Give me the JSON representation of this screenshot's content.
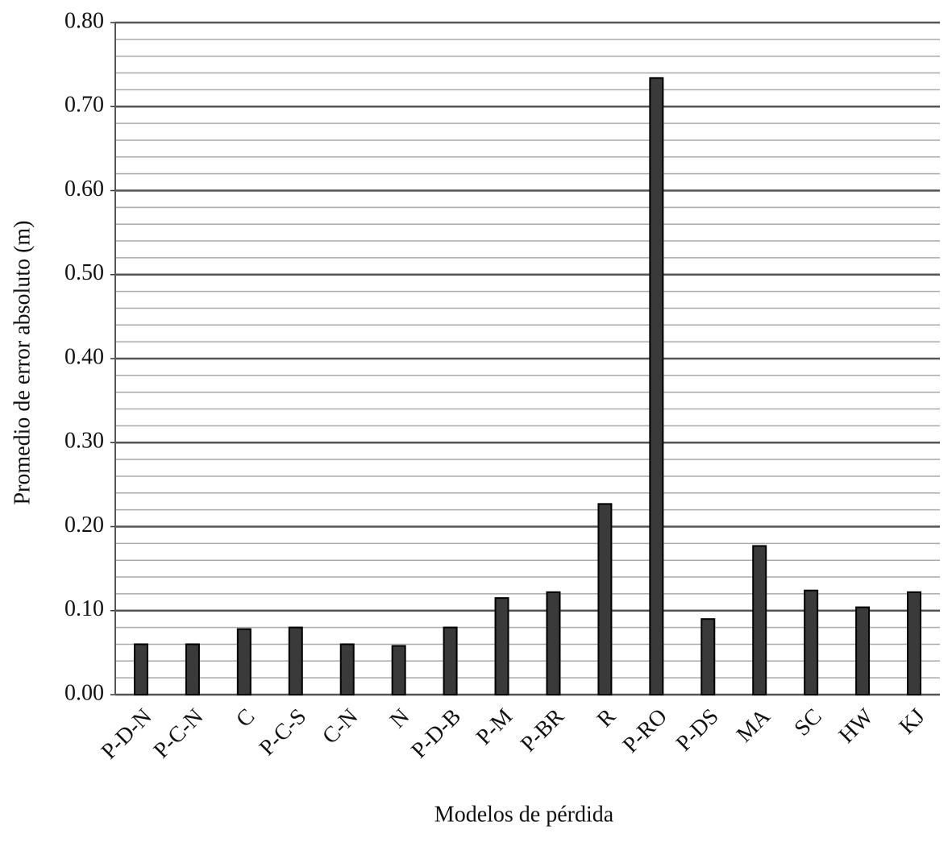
{
  "chart_data": {
    "type": "bar",
    "x_label": "Modelos de pérdida",
    "y_label": "Promedio de error absoluto (m)",
    "categories": [
      "P-D-N",
      "P-C-N",
      "C",
      "P-C-S",
      "C-N",
      "N",
      "P-D-B",
      "P-M",
      "P-BR",
      "R",
      "P-RO",
      "P-DS",
      "MA",
      "SC",
      "HW",
      "KJ"
    ],
    "values": [
      0.06,
      0.06,
      0.078,
      0.08,
      0.06,
      0.058,
      0.08,
      0.115,
      0.122,
      0.227,
      0.734,
      0.09,
      0.177,
      0.124,
      0.104,
      0.122
    ],
    "color": "#3a3a3a",
    "ylim": [
      0,
      0.8
    ],
    "yticks": [
      {
        "value": 0,
        "label": "0.00"
      },
      {
        "value": 0.1,
        "label": "0.10"
      },
      {
        "value": 0.2,
        "label": "0.20"
      },
      {
        "value": 0.3,
        "label": "0.30"
      },
      {
        "value": 0.4,
        "label": "0.40"
      },
      {
        "value": 0.5,
        "label": "0.50"
      },
      {
        "value": 0.6,
        "label": "0.60"
      },
      {
        "value": 0.7,
        "label": "0.70"
      },
      {
        "value": 0.8,
        "label": "0.80"
      }
    ],
    "minor_yticks": [
      0.02,
      0.04,
      0.06,
      0.08,
      0.12,
      0.14,
      0.16,
      0.18,
      0.22,
      0.24,
      0.26,
      0.28,
      0.32,
      0.34,
      0.36,
      0.38,
      0.42,
      0.44,
      0.46,
      0.48,
      0.52,
      0.54,
      0.56,
      0.58,
      0.62,
      0.64,
      0.66,
      0.68,
      0.72,
      0.74,
      0.76,
      0.78
    ],
    "grid": true
  }
}
